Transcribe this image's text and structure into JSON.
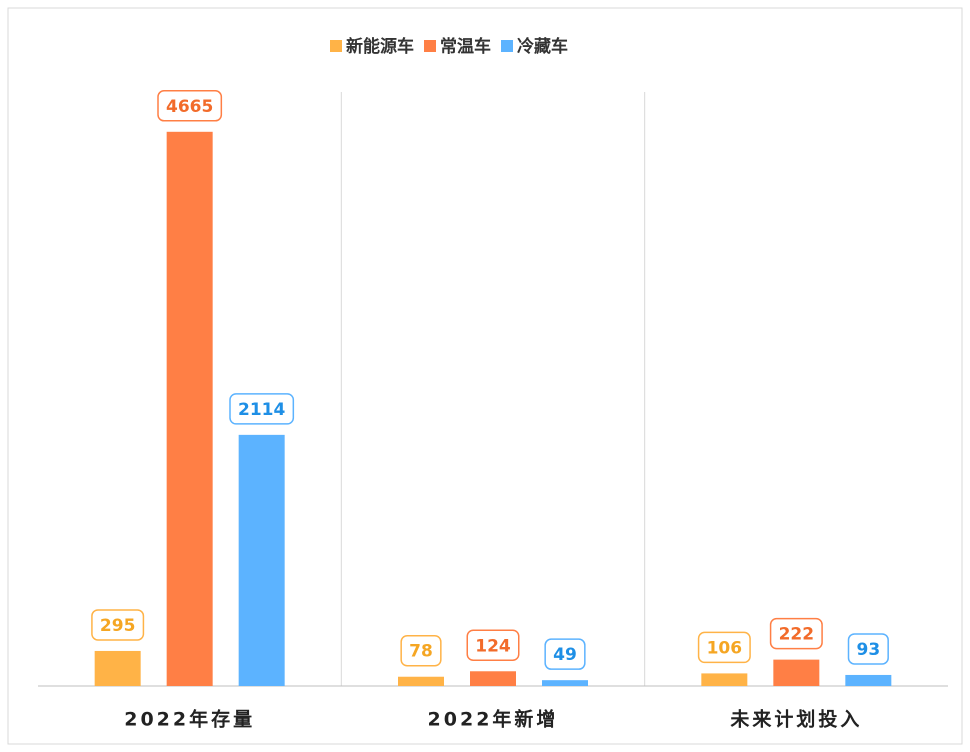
{
  "chart_data": {
    "type": "bar",
    "categories": [
      "2022年存量",
      "2022年新增",
      "未来计划投入"
    ],
    "series": [
      {
        "name": "新能源车",
        "color": "#ffb347",
        "values": [
          295,
          78,
          106
        ]
      },
      {
        "name": "常温车",
        "color": "#ff7f45",
        "values": [
          4665,
          124,
          222
        ]
      },
      {
        "name": "冷藏车",
        "color": "#5cb3ff",
        "values": [
          2114,
          49,
          93
        ]
      }
    ],
    "ylim": [
      0,
      5000
    ]
  }
}
